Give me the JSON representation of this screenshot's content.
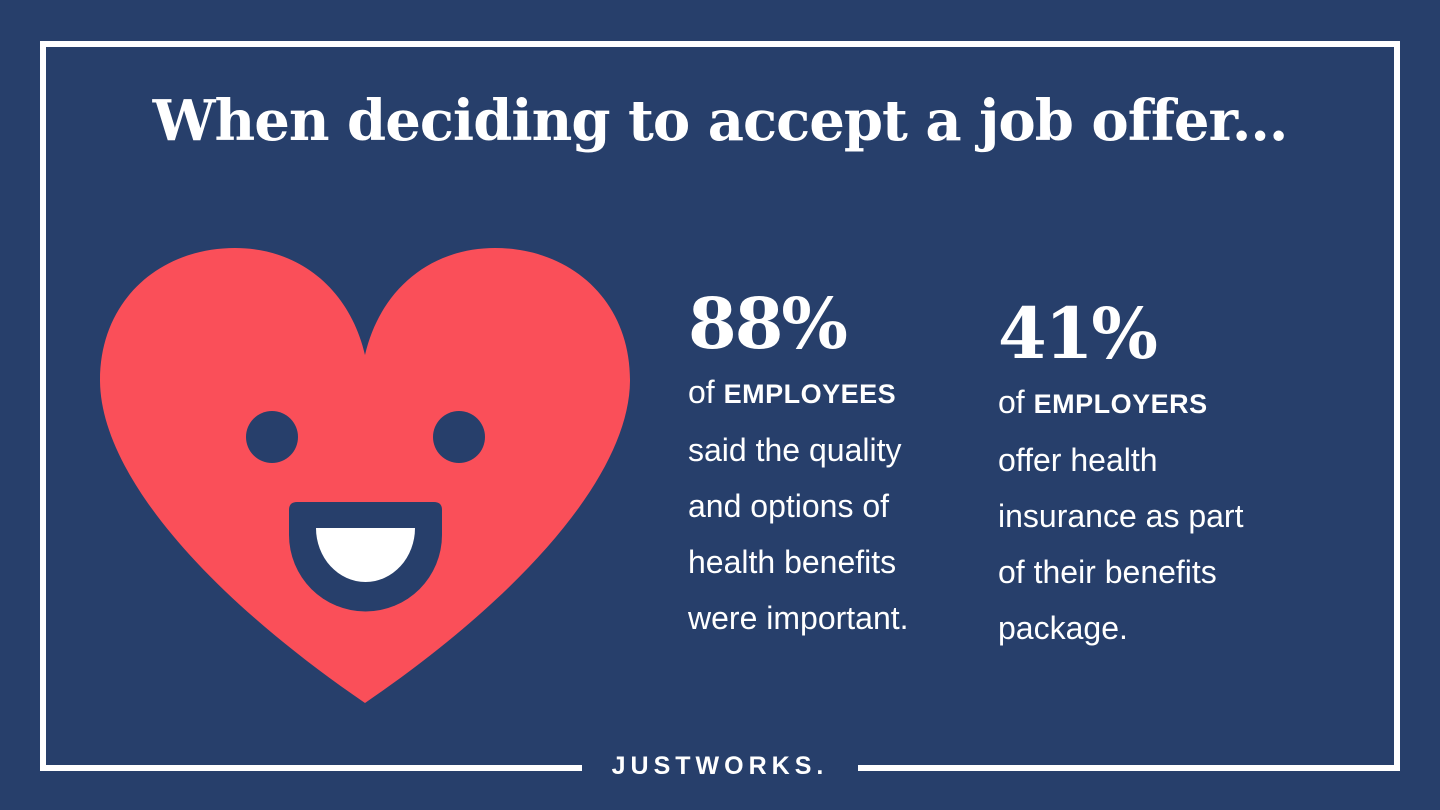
{
  "header": {
    "title": "When deciding to accept a job offer..."
  },
  "stats": [
    {
      "figure": "88%",
      "prefix": "of",
      "emphasis": "EMPLOYEES",
      "lines": [
        "said the quality",
        "and options of",
        "health benefits",
        "were important."
      ]
    },
    {
      "figure": "41%",
      "prefix": "of",
      "emphasis": "EMPLOYERS",
      "lines": [
        "offer health",
        "insurance as part",
        "of their benefits",
        "package."
      ]
    }
  ],
  "footer": {
    "brand": "JUSTWORKS."
  }
}
